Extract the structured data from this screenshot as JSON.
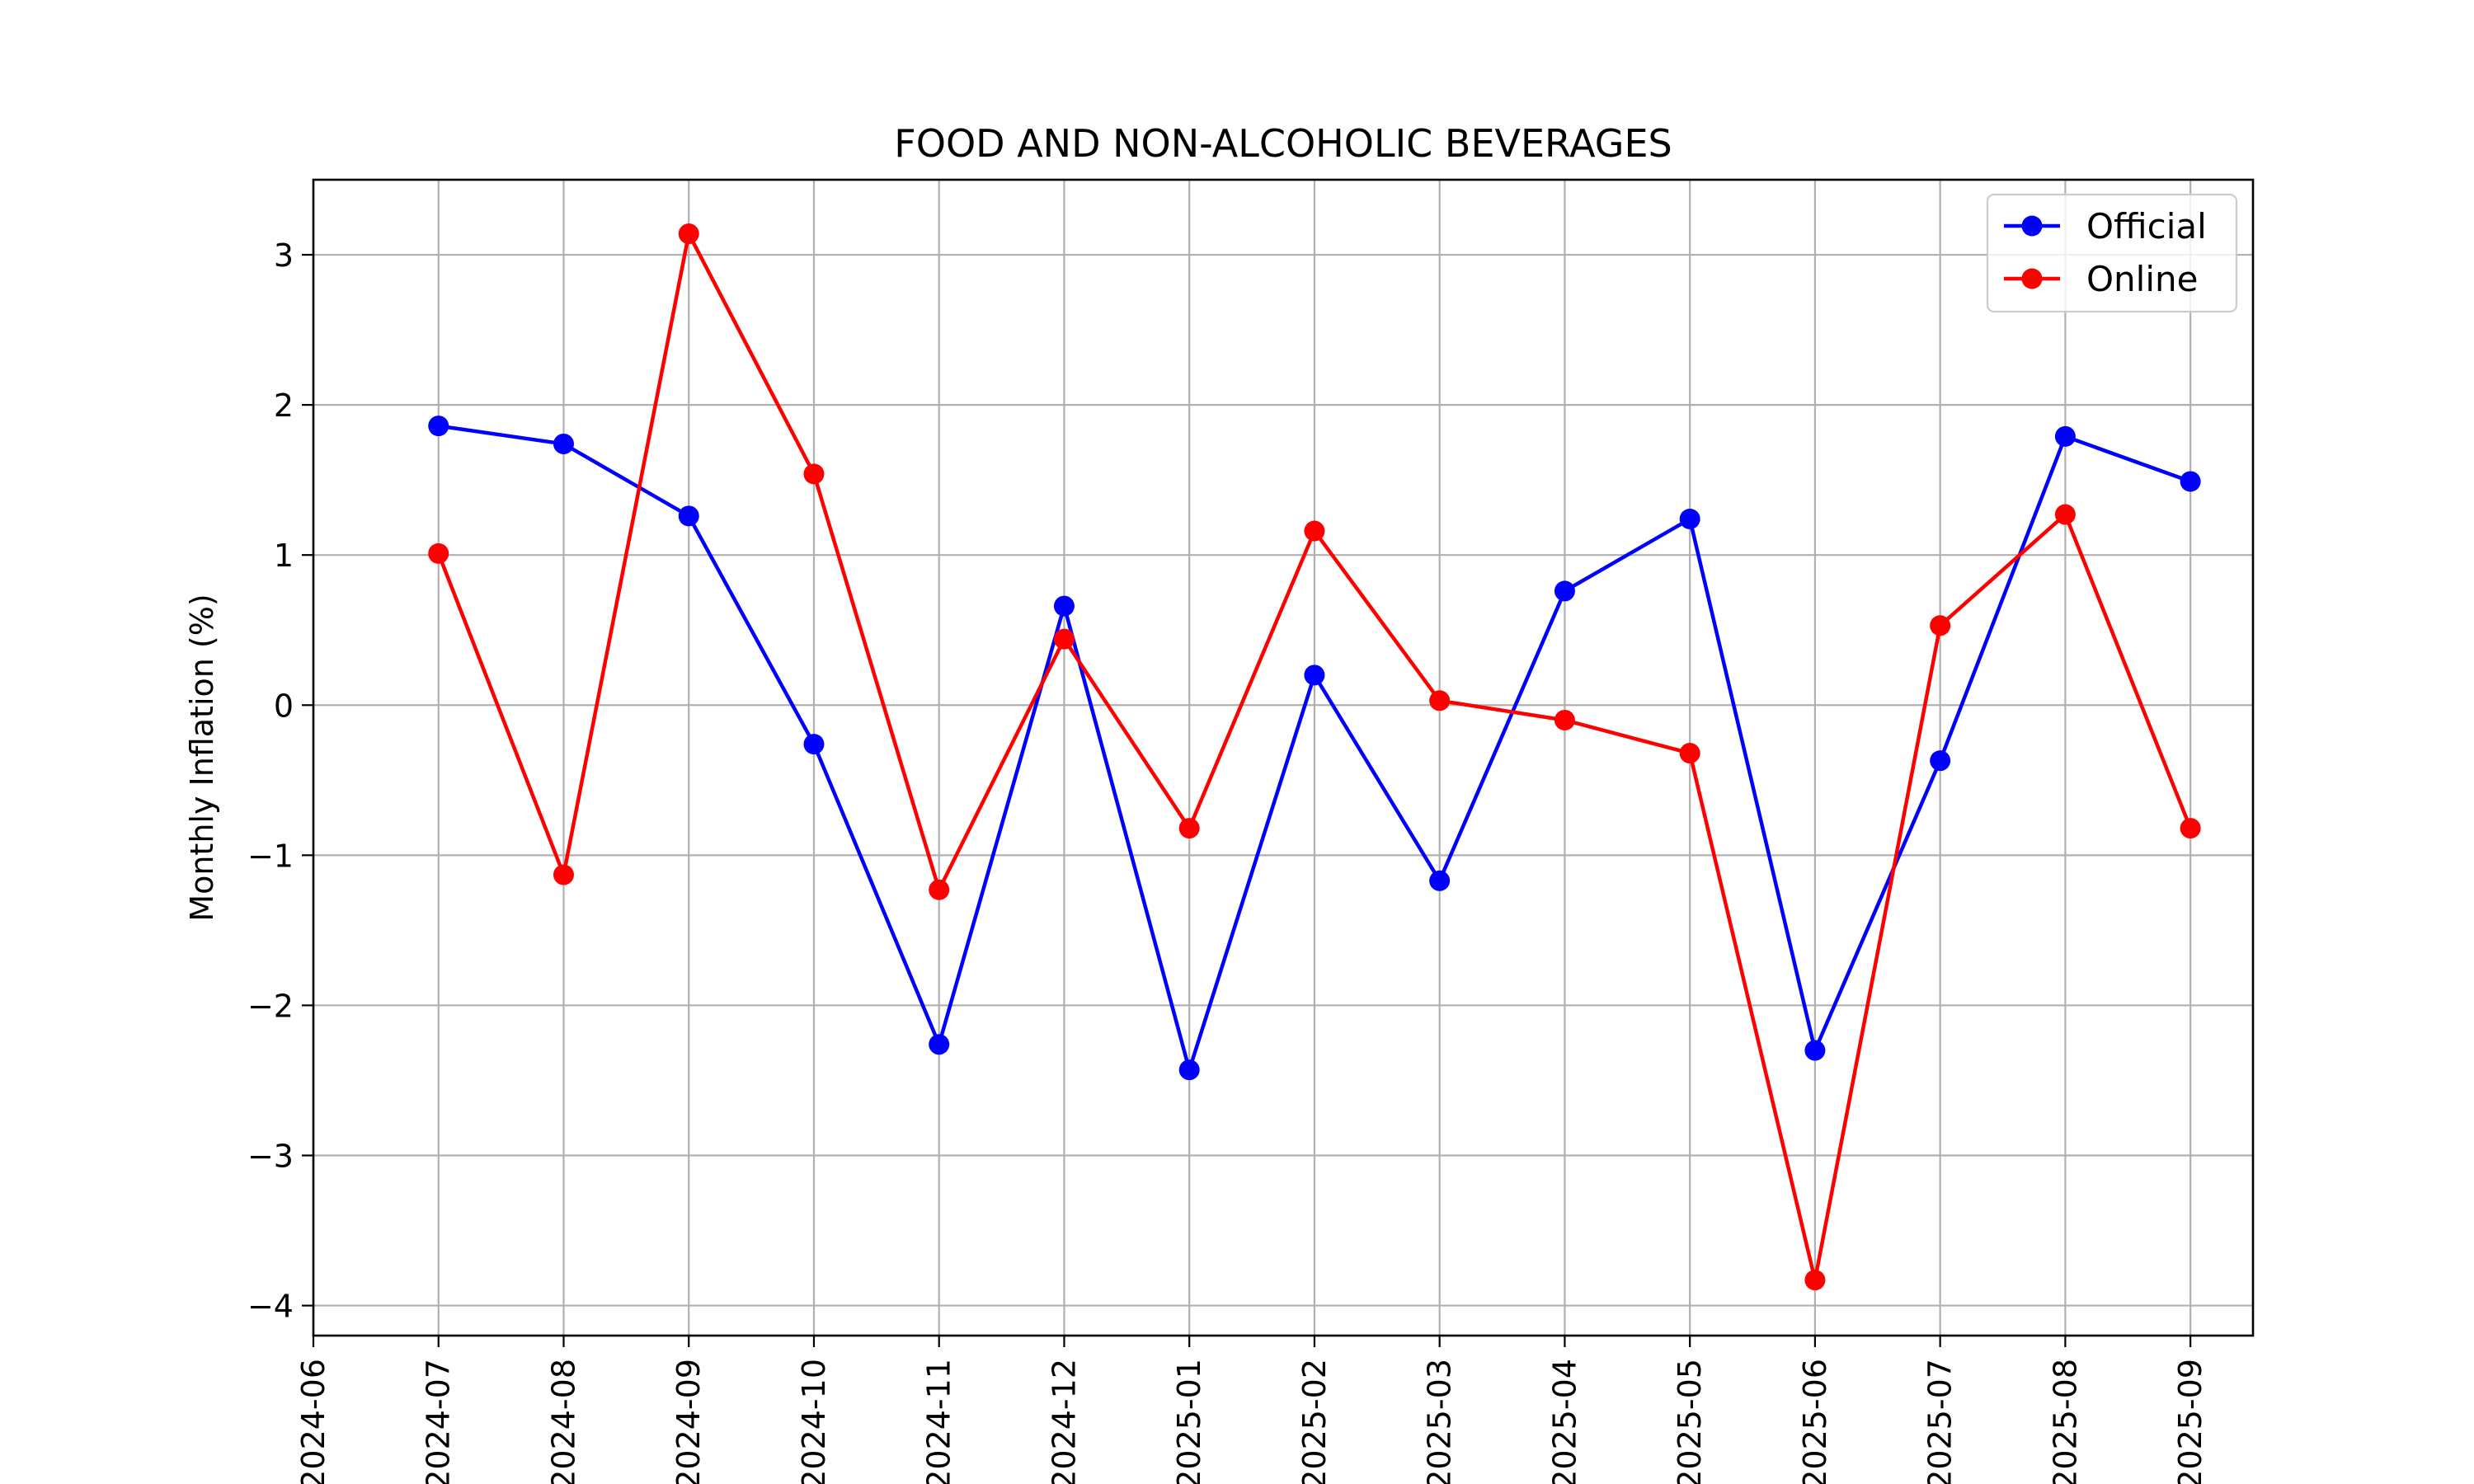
{
  "chart_data": {
    "type": "line",
    "title": "FOOD AND NON-ALCOHOLIC BEVERAGES",
    "xlabel": "",
    "ylabel": "Monthly Inflation (%)",
    "x_ticks": [
      "2024-06",
      "2024-07",
      "2024-08",
      "2024-09",
      "2024-10",
      "2024-11",
      "2024-12",
      "2025-01",
      "2025-02",
      "2025-03",
      "2025-04",
      "2025-05",
      "2025-06",
      "2025-07",
      "2025-08",
      "2025-09"
    ],
    "x": [
      "2024-07",
      "2024-08",
      "2024-09",
      "2024-10",
      "2024-11",
      "2024-12",
      "2025-01",
      "2025-02",
      "2025-03",
      "2025-04",
      "2025-05",
      "2025-06",
      "2025-07",
      "2025-08",
      "2025-09"
    ],
    "xlim": [
      "2024-06",
      "2025-09"
    ],
    "ylim": [
      -4.2,
      3.5
    ],
    "y_ticks": [
      -4,
      -3,
      -2,
      -1,
      0,
      1,
      2,
      3
    ],
    "y_tick_labels": [
      "−4",
      "−3",
      "−2",
      "−1",
      "0",
      "1",
      "2",
      "3"
    ],
    "grid": true,
    "legend": "top-right",
    "series": [
      {
        "name": "Official",
        "color": "#0000ff",
        "marker": "circle",
        "values": [
          1.86,
          1.74,
          1.26,
          -0.26,
          -2.26,
          0.66,
          -2.43,
          0.2,
          -1.17,
          0.76,
          1.24,
          -2.3,
          -0.37,
          1.79,
          1.49
        ]
      },
      {
        "name": "Online",
        "color": "#ff0000",
        "marker": "circle",
        "values": [
          1.01,
          -1.13,
          3.14,
          1.54,
          -1.23,
          0.44,
          -0.82,
          1.16,
          0.03,
          -0.1,
          -0.32,
          -3.83,
          0.53,
          1.27,
          -0.82
        ]
      }
    ]
  }
}
